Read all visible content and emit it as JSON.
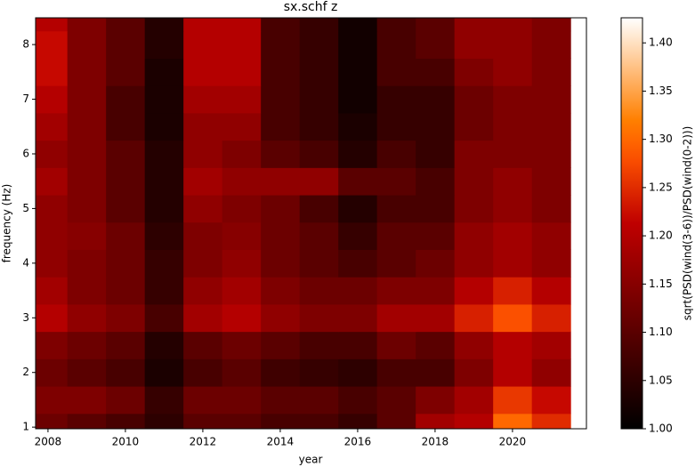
{
  "chart_data": {
    "type": "heatmap",
    "title": "sx.schf z",
    "xlabel": "year",
    "ylabel": "frequency (Hz)",
    "colorbar_label": "sqrt(PSD(wind(3-6))/PSD(wind(0-2)))",
    "colormap": "gist_heat",
    "x": [
      2008,
      2009,
      2010,
      2011,
      2012,
      2013,
      2014,
      2015,
      2016,
      2017,
      2018,
      2019,
      2020,
      2021
    ],
    "y": [
      1.0,
      1.5,
      2.0,
      2.5,
      3.0,
      3.5,
      4.0,
      4.5,
      5.0,
      5.5,
      6.0,
      6.5,
      7.0,
      7.5,
      8.0,
      8.5
    ],
    "z": [
      [
        1.12,
        1.1,
        1.08,
        1.05,
        1.1,
        1.1,
        1.08,
        1.08,
        1.06,
        1.1,
        1.18,
        1.2,
        1.3,
        1.25
      ],
      [
        1.14,
        1.14,
        1.12,
        1.06,
        1.12,
        1.12,
        1.1,
        1.1,
        1.08,
        1.1,
        1.14,
        1.18,
        1.26,
        1.22
      ],
      [
        1.12,
        1.1,
        1.08,
        1.03,
        1.08,
        1.1,
        1.07,
        1.06,
        1.05,
        1.08,
        1.08,
        1.14,
        1.2,
        1.16
      ],
      [
        1.14,
        1.12,
        1.1,
        1.04,
        1.1,
        1.12,
        1.1,
        1.08,
        1.08,
        1.12,
        1.1,
        1.16,
        1.2,
        1.18
      ],
      [
        1.2,
        1.16,
        1.14,
        1.08,
        1.18,
        1.2,
        1.16,
        1.14,
        1.14,
        1.18,
        1.18,
        1.24,
        1.28,
        1.24
      ],
      [
        1.18,
        1.14,
        1.12,
        1.06,
        1.16,
        1.18,
        1.14,
        1.12,
        1.12,
        1.14,
        1.14,
        1.2,
        1.24,
        1.2
      ],
      [
        1.16,
        1.14,
        1.12,
        1.06,
        1.14,
        1.16,
        1.12,
        1.1,
        1.08,
        1.1,
        1.12,
        1.16,
        1.18,
        1.16
      ],
      [
        1.16,
        1.15,
        1.12,
        1.05,
        1.14,
        1.15,
        1.12,
        1.1,
        1.06,
        1.1,
        1.1,
        1.16,
        1.18,
        1.16
      ],
      [
        1.16,
        1.14,
        1.1,
        1.04,
        1.16,
        1.14,
        1.12,
        1.08,
        1.04,
        1.08,
        1.08,
        1.14,
        1.16,
        1.14
      ],
      [
        1.18,
        1.14,
        1.1,
        1.04,
        1.18,
        1.16,
        1.16,
        1.16,
        1.1,
        1.1,
        1.08,
        1.14,
        1.16,
        1.14
      ],
      [
        1.16,
        1.14,
        1.1,
        1.04,
        1.16,
        1.14,
        1.1,
        1.08,
        1.04,
        1.08,
        1.06,
        1.14,
        1.14,
        1.14
      ],
      [
        1.18,
        1.14,
        1.08,
        1.03,
        1.16,
        1.16,
        1.08,
        1.06,
        1.03,
        1.06,
        1.06,
        1.12,
        1.14,
        1.14
      ],
      [
        1.2,
        1.14,
        1.08,
        1.03,
        1.18,
        1.18,
        1.08,
        1.06,
        1.02,
        1.06,
        1.06,
        1.12,
        1.14,
        1.14
      ],
      [
        1.22,
        1.14,
        1.1,
        1.03,
        1.2,
        1.2,
        1.08,
        1.06,
        1.02,
        1.08,
        1.08,
        1.14,
        1.16,
        1.14
      ],
      [
        1.22,
        1.14,
        1.1,
        1.04,
        1.2,
        1.2,
        1.08,
        1.06,
        1.02,
        1.08,
        1.1,
        1.16,
        1.16,
        1.14
      ],
      [
        1.2,
        1.14,
        1.1,
        1.04,
        1.2,
        1.2,
        1.08,
        1.06,
        1.02,
        1.08,
        1.1,
        1.16,
        1.16,
        1.14
      ]
    ],
    "xlim": [
      2007.68,
      2021.91
    ],
    "ylim": [
      0.97,
      8.49
    ],
    "xticks": [
      2008,
      2010,
      2012,
      2014,
      2016,
      2018,
      2020
    ],
    "yticks": [
      1,
      2,
      3,
      4,
      5,
      6,
      7,
      8
    ],
    "clim": [
      1.0,
      1.426
    ],
    "cticks": [
      {
        "value": 1.0,
        "label": "1.00"
      },
      1.05,
      {
        "value": 1.1,
        "label": "1.10"
      },
      1.15,
      {
        "value": 1.2,
        "label": "1.20"
      },
      1.25,
      {
        "value": 1.3,
        "label": "1.30"
      },
      1.35,
      {
        "value": 1.4,
        "label": "1.40"
      }
    ]
  }
}
